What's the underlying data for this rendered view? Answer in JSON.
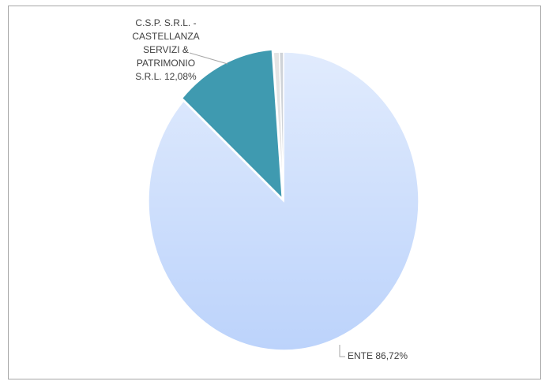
{
  "chart_data": {
    "type": "pie",
    "categories": [
      "ENTE",
      "C.S.P. S.R.L. - CASTELLANZA SERVIZI & PATRIMONIO S.R.L.",
      null,
      null
    ],
    "values": [
      86.72,
      12.08,
      0.7,
      0.5
    ],
    "value_labels": [
      "86,72%",
      "12,08%",
      null,
      null
    ],
    "colors": [
      "#bcd3fb",
      "#3f9ab0",
      "#e4e4e4",
      "#cfd3d8"
    ]
  }
}
